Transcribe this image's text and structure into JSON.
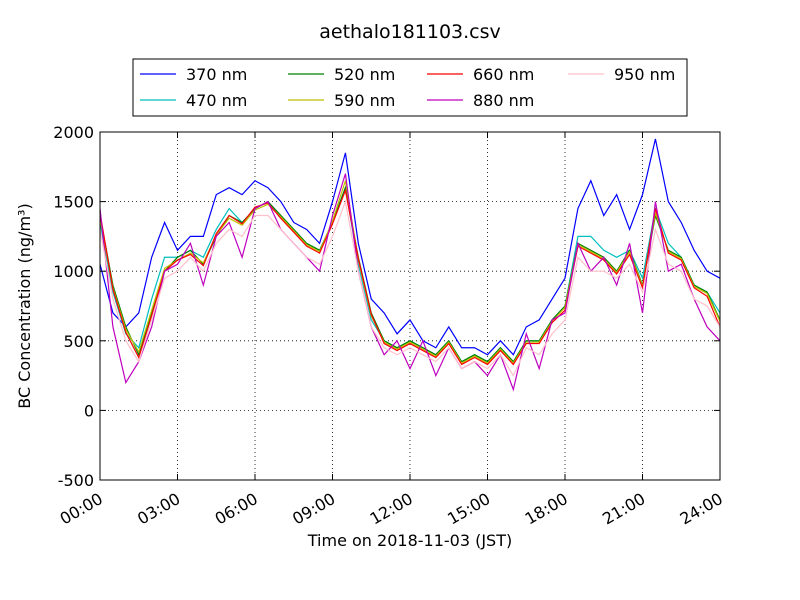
{
  "chart_data": {
    "type": "line",
    "title": "aethalo181103.csv",
    "x_label": "Time on 2018-11-03 (JST)",
    "y_label": "BC Concentration (ng/m³)",
    "x": [
      0,
      0.5,
      1,
      1.5,
      2,
      2.5,
      3,
      3.5,
      4,
      4.5,
      5,
      5.5,
      6,
      6.5,
      7,
      7.5,
      8,
      8.5,
      9,
      9.5,
      10,
      10.5,
      11,
      11.5,
      12,
      12.5,
      13,
      13.5,
      14,
      14.5,
      15,
      15.5,
      16,
      16.5,
      17,
      17.5,
      18,
      18.5,
      19,
      19.5,
      20,
      20.5,
      21,
      21.5,
      22,
      22.5,
      23,
      23.5,
      24
    ],
    "series": [
      {
        "name": "370 nm",
        "color": "#0000ff",
        "values": [
          1050,
          700,
          600,
          700,
          1100,
          1350,
          1150,
          1250,
          1250,
          1550,
          1600,
          1550,
          1650,
          1600,
          1500,
          1350,
          1300,
          1200,
          1500,
          1850,
          1200,
          800,
          700,
          550,
          650,
          500,
          450,
          600,
          450,
          450,
          400,
          500,
          400,
          600,
          650,
          800,
          950,
          1450,
          1650,
          1400,
          1550,
          1300,
          1550,
          1950,
          1500,
          1350,
          1150,
          1000,
          950
        ]
      },
      {
        "name": "470 nm",
        "color": "#00bfbf",
        "values": [
          1350,
          850,
          550,
          450,
          800,
          1100,
          1100,
          1150,
          1100,
          1300,
          1450,
          1350,
          1450,
          1500,
          1400,
          1300,
          1200,
          1150,
          1350,
          1600,
          1050,
          650,
          500,
          450,
          500,
          450,
          400,
          500,
          350,
          400,
          350,
          450,
          350,
          500,
          500,
          650,
          750,
          1250,
          1250,
          1150,
          1100,
          1150,
          950,
          1450,
          1200,
          1100,
          900,
          850,
          700
        ]
      },
      {
        "name": "520 nm",
        "color": "#008000",
        "values": [
          1400,
          900,
          600,
          400,
          700,
          1000,
          1100,
          1150,
          1050,
          1250,
          1400,
          1350,
          1450,
          1500,
          1400,
          1300,
          1200,
          1150,
          1350,
          1600,
          1100,
          700,
          500,
          450,
          500,
          450,
          400,
          500,
          350,
          400,
          350,
          450,
          350,
          500,
          500,
          650,
          750,
          1200,
          1150,
          1100,
          1000,
          1150,
          900,
          1400,
          1150,
          1100,
          900,
          850,
          650
        ]
      },
      {
        "name": "590 nm",
        "color": "#bfbf00",
        "values": [
          1380,
          880,
          580,
          420,
          720,
          1020,
          1080,
          1130,
          1060,
          1260,
          1380,
          1330,
          1440,
          1480,
          1390,
          1290,
          1190,
          1140,
          1360,
          1650,
          1080,
          680,
          490,
          440,
          490,
          440,
          390,
          490,
          340,
          390,
          340,
          440,
          340,
          490,
          490,
          640,
          740,
          1190,
          1140,
          1090,
          990,
          1140,
          890,
          1420,
          1140,
          1090,
          890,
          840,
          640
        ]
      },
      {
        "name": "660 nm",
        "color": "#ff0000",
        "values": [
          1420,
          870,
          560,
          380,
          680,
          1000,
          1080,
          1120,
          1040,
          1270,
          1400,
          1340,
          1460,
          1490,
          1380,
          1280,
          1180,
          1130,
          1340,
          1580,
          1090,
          690,
          480,
          430,
          480,
          430,
          380,
          480,
          330,
          380,
          330,
          430,
          330,
          480,
          480,
          630,
          720,
          1180,
          1130,
          1080,
          980,
          1120,
          880,
          1450,
          1130,
          1080,
          880,
          820,
          600
        ]
      },
      {
        "name": "880 nm",
        "color": "#bf00bf",
        "values": [
          1450,
          600,
          200,
          350,
          600,
          1000,
          1050,
          1200,
          900,
          1250,
          1350,
          1100,
          1450,
          1500,
          1300,
          1200,
          1100,
          1000,
          1400,
          1700,
          1000,
          600,
          400,
          500,
          300,
          500,
          250,
          450,
          300,
          350,
          250,
          400,
          150,
          550,
          300,
          650,
          700,
          1200,
          1000,
          1100,
          900,
          1200,
          700,
          1500,
          1000,
          1050,
          800,
          600,
          500
        ]
      },
      {
        "name": "950 nm",
        "color": "#ffc0cb",
        "values": [
          1300,
          800,
          500,
          350,
          650,
          950,
          1000,
          1100,
          1000,
          1200,
          1300,
          1250,
          1400,
          1400,
          1300,
          1200,
          1100,
          1050,
          1250,
          1500,
          1000,
          600,
          450,
          400,
          450,
          400,
          350,
          450,
          300,
          350,
          300,
          400,
          250,
          450,
          400,
          550,
          650,
          1100,
          1000,
          1000,
          950,
          1050,
          850,
          1300,
          1050,
          1000,
          800,
          750,
          600
        ]
      }
    ],
    "xlim": [
      0,
      24
    ],
    "xticks": [
      {
        "value": 0,
        "label": "00:00"
      },
      {
        "value": 3,
        "label": "03:00"
      },
      {
        "value": 6,
        "label": "06:00"
      },
      {
        "value": 9,
        "label": "09:00"
      },
      {
        "value": 12,
        "label": "12:00"
      },
      {
        "value": 15,
        "label": "15:00"
      },
      {
        "value": 18,
        "label": "18:00"
      },
      {
        "value": 21,
        "label": "21:00"
      },
      {
        "value": 24,
        "label": "24:00"
      }
    ],
    "ylim": [
      -500,
      2000
    ],
    "yticks": [
      -500,
      0,
      500,
      1000,
      1500,
      2000
    ],
    "grid": true,
    "legend": "top"
  }
}
